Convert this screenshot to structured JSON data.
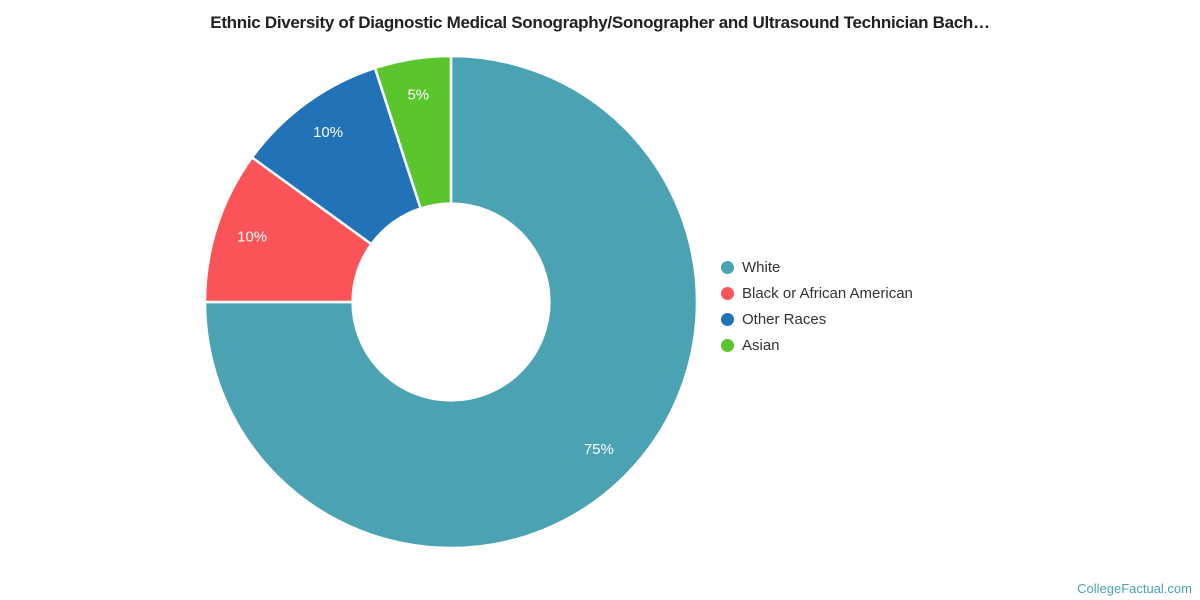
{
  "title": "Ethnic Diversity of Diagnostic Medical Sonography/Sonographer and Ultrasound Technician Bach…",
  "watermark": "CollegeFactual.com",
  "colors": {
    "background": "#ffffff",
    "title_text": "#212121",
    "legend_text": "#333333",
    "slice_label_text": "#ffffff",
    "slice_divider": "#ffffff",
    "watermark_text": "#4ba2b3"
  },
  "chart_data": {
    "type": "pie",
    "subtype": "donut",
    "title": "Ethnic Diversity of Diagnostic Medical Sonography/Sonographer and Ultrasound Technician Bach…",
    "categories": [
      "White",
      "Black or African American",
      "Other Races",
      "Asian"
    ],
    "values": [
      75,
      10,
      10,
      5
    ],
    "unit": "%",
    "slice_labels": [
      "75%",
      "10%",
      "10%",
      "5%"
    ],
    "slice_colors": [
      "#4ba2b3",
      "#fa5459",
      "#2272b8",
      "#5ac52c"
    ],
    "start_angle_deg": 0,
    "direction": "clockwise",
    "inner_radius_ratio": 0.4,
    "legend_position": "right",
    "grid": "off"
  },
  "legend": {
    "items": [
      {
        "label": "White",
        "color": "#4ba2b3"
      },
      {
        "label": "Black or African American",
        "color": "#fa5459"
      },
      {
        "label": "Other Races",
        "color": "#2272b8"
      },
      {
        "label": "Asian",
        "color": "#5ac52c"
      }
    ]
  }
}
